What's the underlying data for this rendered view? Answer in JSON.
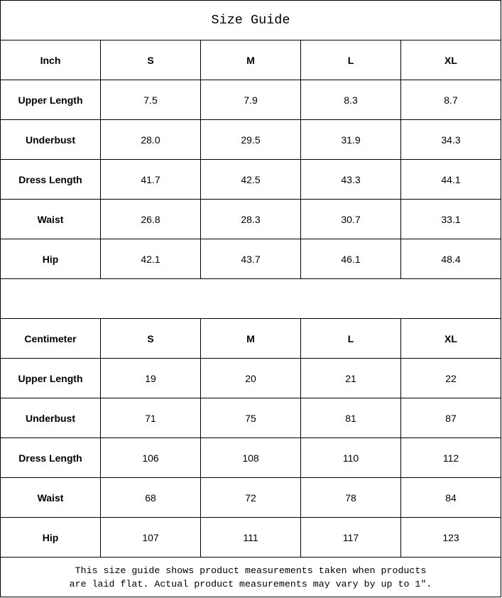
{
  "title": "Size Guide",
  "inch": {
    "unit_label": "Inch",
    "sizes": [
      "S",
      "M",
      "L",
      "XL"
    ],
    "rows": [
      {
        "label": "Upper Length",
        "values": [
          "7.5",
          "7.9",
          "8.3",
          "8.7"
        ]
      },
      {
        "label": "Underbust",
        "values": [
          "28.0",
          "29.5",
          "31.9",
          "34.3"
        ]
      },
      {
        "label": "Dress Length",
        "values": [
          "41.7",
          "42.5",
          "43.3",
          "44.1"
        ]
      },
      {
        "label": "Waist",
        "values": [
          "26.8",
          "28.3",
          "30.7",
          "33.1"
        ]
      },
      {
        "label": "Hip",
        "values": [
          "42.1",
          "43.7",
          "46.1",
          "48.4"
        ]
      }
    ]
  },
  "cm": {
    "unit_label": "Centimeter",
    "sizes": [
      "S",
      "M",
      "L",
      "XL"
    ],
    "rows": [
      {
        "label": "Upper Length",
        "values": [
          "19",
          "20",
          "21",
          "22"
        ]
      },
      {
        "label": "Underbust",
        "values": [
          "71",
          "75",
          "81",
          "87"
        ]
      },
      {
        "label": "Dress Length",
        "values": [
          "106",
          "108",
          "110",
          "112"
        ]
      },
      {
        "label": "Waist",
        "values": [
          "68",
          "72",
          "78",
          "84"
        ]
      },
      {
        "label": "Hip",
        "values": [
          "107",
          "111",
          "117",
          "123"
        ]
      }
    ]
  },
  "footer": {
    "line1": "This size guide shows product measurements taken when products",
    "line2": "are laid flat. Actual product measurements may vary by up to 1″."
  }
}
